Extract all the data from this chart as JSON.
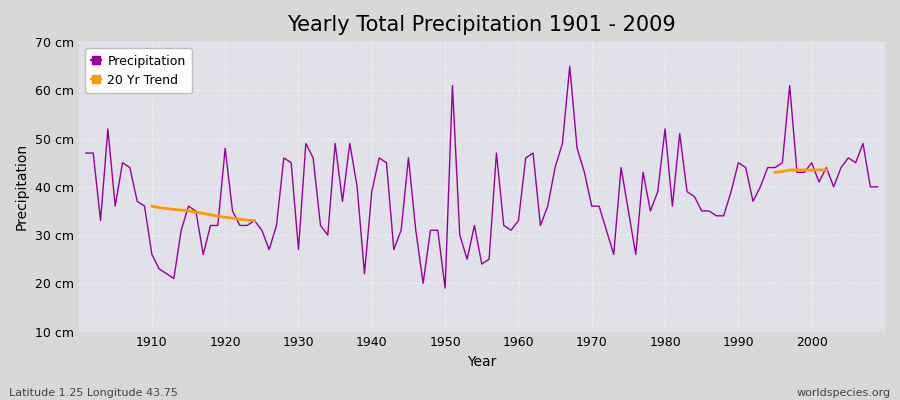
{
  "title": "Yearly Total Precipitation 1901 - 2009",
  "xlabel": "Year",
  "ylabel": "Precipitation",
  "background_color": "#d8d8d8",
  "plot_bg_color": "#e0e0e8",
  "precip_color": "#990099",
  "trend_color": "#ff9900",
  "grid_color": "#ffffff",
  "ylim": [
    10,
    70
  ],
  "yticks": [
    10,
    20,
    30,
    40,
    50,
    60,
    70
  ],
  "ytick_labels": [
    "10 cm",
    "20 cm",
    "30 cm",
    "40 cm",
    "50 cm",
    "60 cm",
    "70 cm"
  ],
  "xlim": [
    1900,
    2010
  ],
  "xticks": [
    1910,
    1920,
    1930,
    1940,
    1950,
    1960,
    1970,
    1980,
    1990,
    2000
  ],
  "years": [
    1901,
    1902,
    1903,
    1904,
    1905,
    1906,
    1907,
    1908,
    1909,
    1910,
    1911,
    1912,
    1913,
    1914,
    1915,
    1916,
    1917,
    1918,
    1919,
    1920,
    1921,
    1922,
    1923,
    1924,
    1925,
    1926,
    1927,
    1928,
    1929,
    1930,
    1931,
    1932,
    1933,
    1934,
    1935,
    1936,
    1937,
    1938,
    1939,
    1940,
    1941,
    1942,
    1943,
    1944,
    1945,
    1946,
    1947,
    1948,
    1949,
    1950,
    1951,
    1952,
    1953,
    1954,
    1955,
    1956,
    1957,
    1958,
    1959,
    1960,
    1961,
    1962,
    1963,
    1964,
    1965,
    1966,
    1967,
    1968,
    1969,
    1970,
    1971,
    1972,
    1973,
    1974,
    1975,
    1976,
    1977,
    1978,
    1979,
    1980,
    1981,
    1982,
    1983,
    1984,
    1985,
    1986,
    1987,
    1988,
    1989,
    1990,
    1991,
    1992,
    1993,
    1994,
    1995,
    1996,
    1997,
    1998,
    1999,
    2000,
    2001,
    2002,
    2003,
    2004,
    2005,
    2006,
    2007,
    2008,
    2009
  ],
  "precip": [
    47,
    47,
    33,
    52,
    36,
    45,
    44,
    37,
    36,
    26,
    23,
    22,
    21,
    31,
    36,
    35,
    26,
    32,
    32,
    48,
    35,
    32,
    32,
    33,
    31,
    27,
    32,
    46,
    45,
    27,
    49,
    46,
    32,
    30,
    49,
    37,
    49,
    40,
    22,
    39,
    46,
    45,
    27,
    31,
    46,
    31,
    20,
    31,
    31,
    19,
    61,
    30,
    25,
    32,
    24,
    25,
    47,
    32,
    31,
    33,
    46,
    47,
    32,
    36,
    44,
    49,
    65,
    48,
    43,
    36,
    36,
    31,
    26,
    44,
    35,
    26,
    43,
    35,
    39,
    52,
    36,
    51,
    39,
    38,
    35,
    35,
    34,
    34,
    39,
    45,
    44,
    37,
    40,
    44,
    44,
    45,
    61,
    43,
    43,
    45,
    41,
    44,
    40,
    44,
    46,
    45,
    49,
    40,
    40
  ],
  "trend_seg1_years": [
    1910,
    1911,
    1912,
    1913,
    1914,
    1915,
    1916,
    1917,
    1918,
    1919,
    1920,
    1921,
    1922,
    1923,
    1924
  ],
  "trend_seg1_vals": [
    36.0,
    35.7,
    35.5,
    35.3,
    35.2,
    35.0,
    34.8,
    34.5,
    34.2,
    33.9,
    33.7,
    33.5,
    33.3,
    33.1,
    33.0
  ],
  "trend_seg2_years": [
    1995,
    1996,
    1997,
    1998,
    1999,
    2000,
    2001,
    2002
  ],
  "trend_seg2_vals": [
    43.0,
    43.2,
    43.5,
    43.5,
    43.5,
    43.5,
    43.5,
    43.5
  ],
  "footnote_left": "Latitude 1.25 Longitude 43.75",
  "footnote_right": "worldspecies.org",
  "title_fontsize": 15,
  "axis_label_fontsize": 10,
  "tick_fontsize": 9,
  "footnote_fontsize": 8,
  "legend_fontsize": 9
}
